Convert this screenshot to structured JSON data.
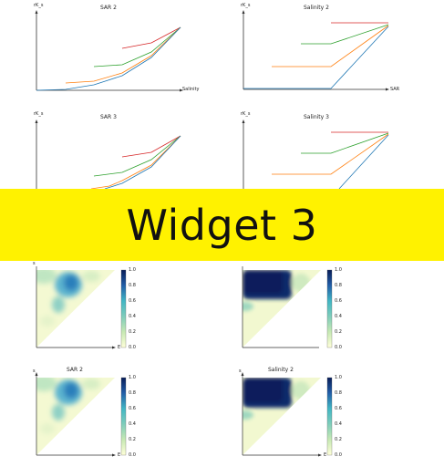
{
  "banner": {
    "text": "Widget 3"
  },
  "line_panels": [
    {
      "id": "p1",
      "title": "SAR 2",
      "ylabel": "rK_s",
      "xlabel": "Salinity"
    },
    {
      "id": "p2",
      "title": "Salinity 2",
      "ylabel": "rK_s",
      "xlabel": "SAR"
    },
    {
      "id": "p3",
      "title": "SAR 3",
      "ylabel": "rK_s",
      "xlabel": ""
    },
    {
      "id": "p4",
      "title": "Salinity 3",
      "ylabel": "rK_s",
      "xlabel": ""
    }
  ],
  "heat_panels": [
    {
      "id": "h1",
      "title": "",
      "ylabel": "s",
      "xlabel": "E"
    },
    {
      "id": "h2",
      "title": "",
      "ylabel": "",
      "xlabel": ""
    },
    {
      "id": "h3",
      "title": "SAR 2",
      "ylabel": "s",
      "xlabel": "E"
    },
    {
      "id": "h4",
      "title": "Salinity 2",
      "ylabel": "s",
      "xlabel": "E"
    }
  ],
  "colorbar": {
    "ticks": [
      "1.0",
      "0.8",
      "0.6",
      "0.4",
      "0.2",
      "0.0"
    ]
  },
  "colors": {
    "red": "#d62728",
    "green": "#2ca02c",
    "orange": "#ff7f0e",
    "blue": "#1f77b4",
    "banner": "#fff200"
  }
}
